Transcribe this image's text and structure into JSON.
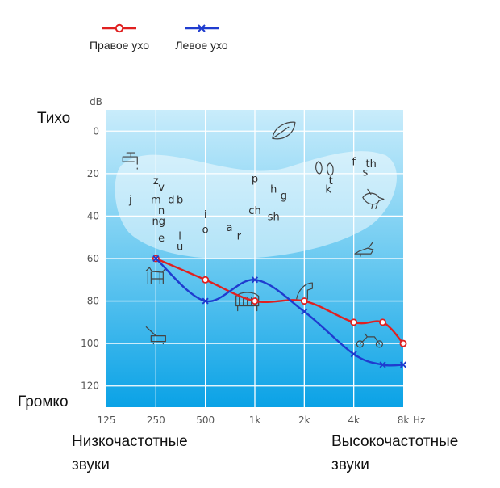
{
  "chart_data": {
    "type": "line",
    "y_unit": "dB",
    "x_unit": "Hz",
    "x": [
      "125",
      "250",
      "500",
      "1k",
      "2k",
      "4k",
      "8k"
    ],
    "y_ticks": [
      0,
      20,
      40,
      60,
      80,
      100,
      120
    ],
    "ylim": [
      -10,
      130
    ],
    "y_inverted": true,
    "grid": true,
    "legend_position": "top-left",
    "series": [
      {
        "name": "Правое ухо",
        "color": "#e02020",
        "marker": "circle",
        "points": [
          [
            250,
            60
          ],
          [
            500,
            70
          ],
          [
            1000,
            80
          ],
          [
            2000,
            80
          ],
          [
            4000,
            90
          ],
          [
            6000,
            90
          ],
          [
            8000,
            100
          ]
        ]
      },
      {
        "name": "Левое ухо",
        "color": "#1f3ccf",
        "marker": "x",
        "points": [
          [
            250,
            60
          ],
          [
            500,
            80
          ],
          [
            1000,
            70
          ],
          [
            2000,
            85
          ],
          [
            4000,
            105
          ],
          [
            6000,
            110
          ],
          [
            8000,
            110
          ]
        ]
      }
    ],
    "speech_sounds": [
      {
        "text": "z",
        "freq": 250,
        "db": 25
      },
      {
        "text": "v",
        "freq": 270,
        "db": 28
      },
      {
        "text": "j",
        "freq": 175,
        "db": 34
      },
      {
        "text": "m",
        "freq": 250,
        "db": 34
      },
      {
        "text": "d",
        "freq": 310,
        "db": 34
      },
      {
        "text": "b",
        "freq": 350,
        "db": 34
      },
      {
        "text": "n",
        "freq": 270,
        "db": 39
      },
      {
        "text": "ng",
        "freq": 260,
        "db": 44
      },
      {
        "text": "e",
        "freq": 270,
        "db": 52
      },
      {
        "text": "l",
        "freq": 350,
        "db": 51
      },
      {
        "text": "u",
        "freq": 350,
        "db": 56
      },
      {
        "text": "i",
        "freq": 500,
        "db": 41
      },
      {
        "text": "o",
        "freq": 500,
        "db": 48
      },
      {
        "text": "a",
        "freq": 700,
        "db": 47
      },
      {
        "text": "r",
        "freq": 800,
        "db": 51
      },
      {
        "text": "p",
        "freq": 1000,
        "db": 24
      },
      {
        "text": "h",
        "freq": 1300,
        "db": 29
      },
      {
        "text": "g",
        "freq": 1500,
        "db": 32
      },
      {
        "text": "ch",
        "freq": 1000,
        "db": 39
      },
      {
        "text": "sh",
        "freq": 1300,
        "db": 42
      },
      {
        "text": "k",
        "freq": 2800,
        "db": 29
      },
      {
        "text": "t",
        "freq": 2900,
        "db": 25
      },
      {
        "text": "f",
        "freq": 4000,
        "db": 16
      },
      {
        "text": "s",
        "freq": 4700,
        "db": 21
      },
      {
        "text": "th",
        "freq": 5100,
        "db": 17
      }
    ],
    "icons": [
      {
        "name": "leaf-icon",
        "freq": 1500,
        "db": 0
      },
      {
        "name": "faucet-icon",
        "freq": 180,
        "db": 14
      },
      {
        "name": "footprints-icon",
        "freq": 2700,
        "db": 17
      },
      {
        "name": "bird-icon",
        "freq": 5200,
        "db": 32
      },
      {
        "name": "leaf-blower-icon",
        "freq": 4700,
        "db": 57
      },
      {
        "name": "dog-icon",
        "freq": 250,
        "db": 68
      },
      {
        "name": "piano-icon",
        "freq": 900,
        "db": 80
      },
      {
        "name": "phone-icon",
        "freq": 2000,
        "db": 76
      },
      {
        "name": "lawnmower-icon",
        "freq": 250,
        "db": 96
      },
      {
        "name": "motorcycle-icon",
        "freq": 5000,
        "db": 98
      }
    ]
  },
  "legend": {
    "right_ear": "Правое ухо",
    "left_ear": "Левое ухо"
  },
  "labels": {
    "quiet": "Тихо",
    "loud": "Громко",
    "low_freq": "Низкочастотные звуки",
    "high_freq": "Высокочастотные звуки"
  },
  "colors": {
    "right_ear": "#e02020",
    "left_ear": "#1f3ccf",
    "plot_top": "#c9ecfb",
    "plot_bottom": "#0aa2e6"
  }
}
